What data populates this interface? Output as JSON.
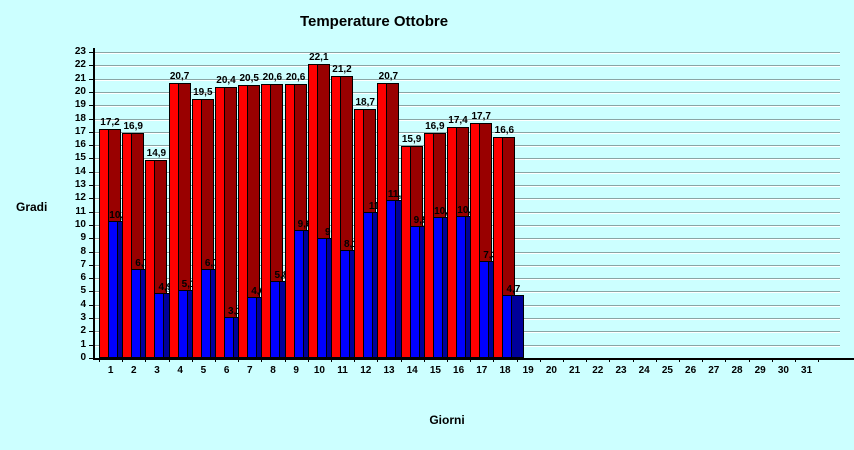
{
  "colors": {
    "background": "#CCFFFF",
    "gridline": "#8AA4A4",
    "gridline_highlight": "#FFFFFF",
    "axis": "#000000",
    "text": "#000000"
  },
  "chart_data": {
    "type": "bar",
    "title": "Temperature Ottobre",
    "xlabel": "Giorni",
    "ylabel": "Gradi",
    "x_categories": [
      1,
      2,
      3,
      4,
      5,
      6,
      7,
      8,
      9,
      10,
      11,
      12,
      13,
      14,
      15,
      16,
      17,
      18,
      19,
      20,
      21,
      22,
      23,
      24,
      25,
      26,
      27,
      28,
      29,
      30,
      31
    ],
    "ylim": [
      0,
      23
    ],
    "y_tick_step": 1,
    "grid": true,
    "legend": "none",
    "series": [
      {
        "name": "red",
        "color": "#FF0000",
        "shade_color": "#990000",
        "values": [
          17.2,
          16.9,
          14.9,
          20.7,
          19.5,
          20.4,
          20.5,
          20.6,
          20.6,
          22.1,
          21.2,
          18.7,
          20.7,
          15.9,
          16.9,
          17.4,
          17.7,
          16.6
        ],
        "labels": [
          "17,2",
          "16,9",
          "14,9",
          "20,7",
          "19,5",
          "20,4",
          "20,5",
          "20,6",
          "20,6",
          "22,1",
          "21,2",
          "18,7",
          "20,7",
          "15,9",
          "16,9",
          "17,4",
          "17,7",
          "16,6"
        ]
      },
      {
        "name": "blue",
        "color": "#0000FF",
        "shade_color": "#000099",
        "values": [
          10.3,
          6.7,
          4.9,
          5.1,
          6.7,
          3.1,
          4.6,
          5.8,
          9.6,
          9,
          8.1,
          11,
          11.9,
          9.9,
          10.6,
          10.7,
          7.3,
          4.7
        ],
        "labels": [
          "10,3",
          "6,7",
          "4,9",
          "5,1",
          "6,7",
          "3,1",
          "4,6",
          "5,8",
          "9,6",
          "9",
          "8,1",
          "11",
          "11,9",
          "9,9",
          "10,6",
          "10,7",
          "7,3",
          "4,7"
        ]
      }
    ]
  }
}
